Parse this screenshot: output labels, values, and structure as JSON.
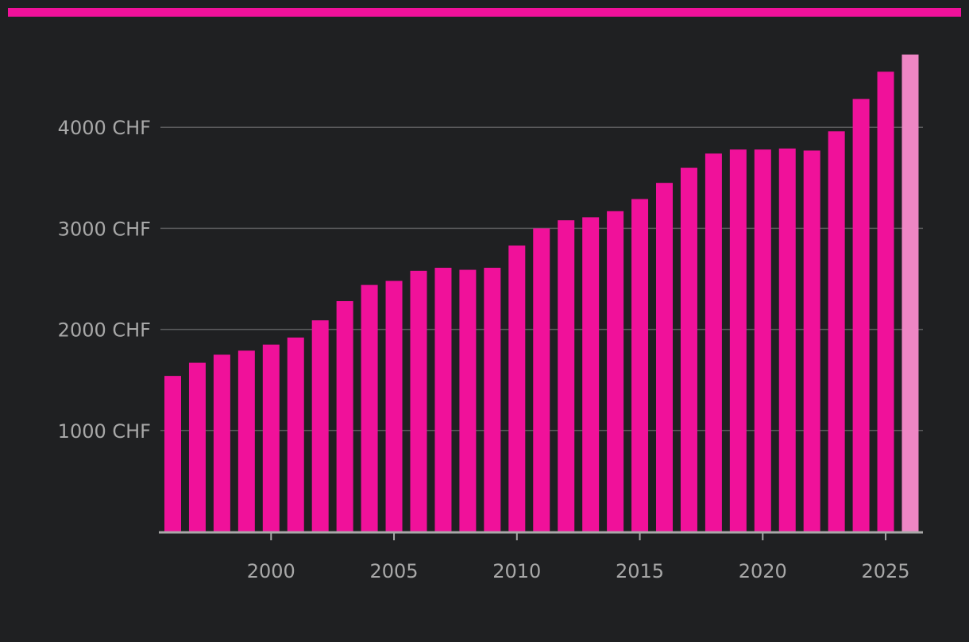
{
  "colors": {
    "background": "#1f2022",
    "accent": "#f0119a",
    "bar": "#f0119a",
    "bar_highlight": "#ee86c4",
    "grid": "#5a5a5c",
    "text": "#a8a8a8"
  },
  "chart_data": {
    "type": "bar",
    "title": "",
    "xlabel": "",
    "ylabel": "",
    "x": [
      1996,
      1997,
      1998,
      1999,
      2000,
      2001,
      2002,
      2003,
      2004,
      2005,
      2006,
      2007,
      2008,
      2009,
      2010,
      2011,
      2012,
      2013,
      2014,
      2015,
      2016,
      2017,
      2018,
      2019,
      2020,
      2021,
      2022,
      2023,
      2024,
      2025,
      2026
    ],
    "values": [
      1540,
      1670,
      1750,
      1790,
      1850,
      1920,
      2090,
      2280,
      2440,
      2480,
      2580,
      2610,
      2590,
      2610,
      2830,
      3000,
      3080,
      3110,
      3170,
      3290,
      3450,
      3600,
      3740,
      3780,
      3780,
      3790,
      3770,
      3960,
      4280,
      4550,
      4720
    ],
    "highlight_last": true,
    "ylim": [
      0,
      4800
    ],
    "y_ticks": [
      {
        "value": 1000,
        "label": "1000 CHF"
      },
      {
        "value": 2000,
        "label": "2000 CHF"
      },
      {
        "value": 3000,
        "label": "3000 CHF"
      },
      {
        "value": 4000,
        "label": "4000 CHF"
      }
    ],
    "x_ticks": [
      {
        "value": 2000,
        "label": "2000"
      },
      {
        "value": 2005,
        "label": "2005"
      },
      {
        "value": 2010,
        "label": "2010"
      },
      {
        "value": 2015,
        "label": "2015"
      },
      {
        "value": 2020,
        "label": "2020"
      },
      {
        "value": 2025,
        "label": "2025"
      }
    ],
    "grid": true,
    "legend": "none"
  }
}
